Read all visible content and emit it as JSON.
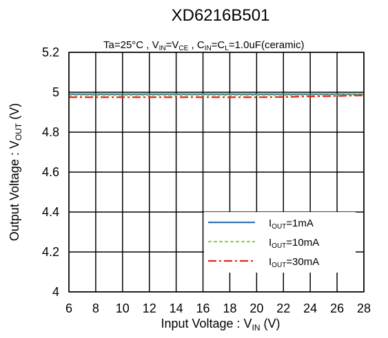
{
  "chart_data": {
    "type": "line",
    "title": "XD6216B501",
    "conditions": {
      "ta": "Ta=25°C",
      "vin_main": "V",
      "vin_sub": "IN",
      "vce_main": "=V",
      "vce_sub": "CE",
      "cin_main": ", C",
      "cin_sub": "IN",
      "cl_main": "=C",
      "cl_sub": "L",
      "cap": "=1.0uF(ceramic)"
    },
    "xlabel": {
      "main": "Input Voltage : V",
      "sub": "IN",
      "unit": " (V)"
    },
    "ylabel": {
      "main": "Output Voltage : V",
      "sub": "OUT",
      "unit": " (V)"
    },
    "xlim": [
      6,
      28
    ],
    "ylim": [
      4.0,
      5.2
    ],
    "x_ticks": [
      6,
      8,
      10,
      12,
      14,
      16,
      18,
      20,
      22,
      24,
      26,
      28
    ],
    "y_ticks": [
      4,
      4.2,
      4.4,
      4.6,
      4.8,
      5,
      5.2
    ],
    "y_tick_labels": [
      "4",
      "4.2",
      "4.4",
      "4.6",
      "4.8",
      "5",
      "5.2"
    ],
    "grid": true,
    "legend_position": "bottom-right",
    "series": [
      {
        "name_main": "I",
        "name_sub": "OUT",
        "name_rest": "=1mA",
        "color": "#2e75b6",
        "dash": "solid",
        "x": [
          6,
          8,
          10,
          12,
          14,
          16,
          18,
          20,
          22,
          24,
          26,
          28
        ],
        "y": [
          4.99,
          4.99,
          4.99,
          4.99,
          4.99,
          4.99,
          4.99,
          4.99,
          4.99,
          4.99,
          4.99,
          4.99
        ]
      },
      {
        "name_main": "I",
        "name_sub": "OUT",
        "name_rest": "=10mA",
        "color": "#92d050",
        "dash": "dashed",
        "x": [
          6,
          8,
          10,
          12,
          14,
          16,
          18,
          20,
          22,
          24,
          26,
          28
        ],
        "y": [
          4.985,
          4.985,
          4.985,
          4.985,
          4.985,
          4.985,
          4.985,
          4.985,
          4.985,
          4.985,
          4.986,
          4.988
        ]
      },
      {
        "name_main": "I",
        "name_sub": "OUT",
        "name_rest": "=30mA",
        "color": "#e8231d",
        "dash": "dashdot",
        "x": [
          6,
          8,
          10,
          12,
          14,
          16,
          18,
          20,
          22,
          24,
          26,
          28
        ],
        "y": [
          4.975,
          4.975,
          4.975,
          4.975,
          4.975,
          4.975,
          4.975,
          4.975,
          4.976,
          4.979,
          4.981,
          4.984
        ]
      }
    ]
  }
}
